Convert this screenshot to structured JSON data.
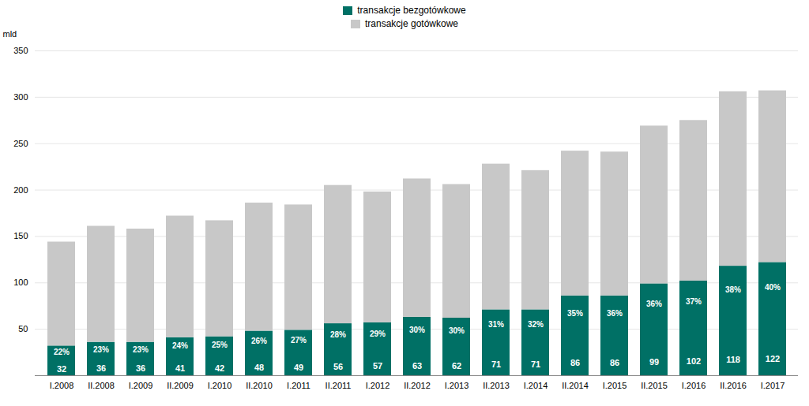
{
  "chart_data": {
    "type": "bar",
    "stacked": true,
    "categories": [
      "I.2008",
      "II.2008",
      "I.2009",
      "II.2009",
      "I.2010",
      "II.2010",
      "I.2011",
      "II.2011",
      "I.2012",
      "II.2012",
      "I.2013",
      "II.2013",
      "I.2014",
      "II.2014",
      "I.2015",
      "II.2015",
      "I.2016",
      "II.2016",
      "I.2017"
    ],
    "series": [
      {
        "name": "transakcje bezgotówkowe",
        "color": "#007065",
        "data_labels": true,
        "values": [
          32,
          36,
          36,
          41,
          42,
          48,
          49,
          56,
          57,
          63,
          62,
          71,
          71,
          86,
          86,
          99,
          102,
          118,
          122
        ],
        "percentages": [
          22,
          23,
          23,
          24,
          25,
          26,
          27,
          28,
          29,
          30,
          30,
          31,
          32,
          35,
          36,
          36,
          37,
          38,
          40
        ],
        "percentage_labels": [
          "22%",
          "23%",
          "23%",
          "24%",
          "25%",
          "26%",
          "27%",
          "28%",
          "29%",
          "30%",
          "30%",
          "31%",
          "32%",
          "35%",
          "36%",
          "36%",
          "37%",
          "38%",
          "40%"
        ]
      },
      {
        "name": "transakcje gotówkowe",
        "color": "#C8C8C8",
        "data_labels": false,
        "values": [
          112,
          125,
          122,
          131,
          125,
          138,
          135,
          149,
          141,
          149,
          144,
          157,
          150,
          156,
          155,
          170,
          173,
          188,
          185
        ]
      }
    ],
    "ylabel": "mld",
    "ylim": [
      0,
      350
    ],
    "yticks": [
      50,
      100,
      150,
      200,
      250,
      300,
      350
    ],
    "grid": true,
    "legend": "upper center"
  }
}
